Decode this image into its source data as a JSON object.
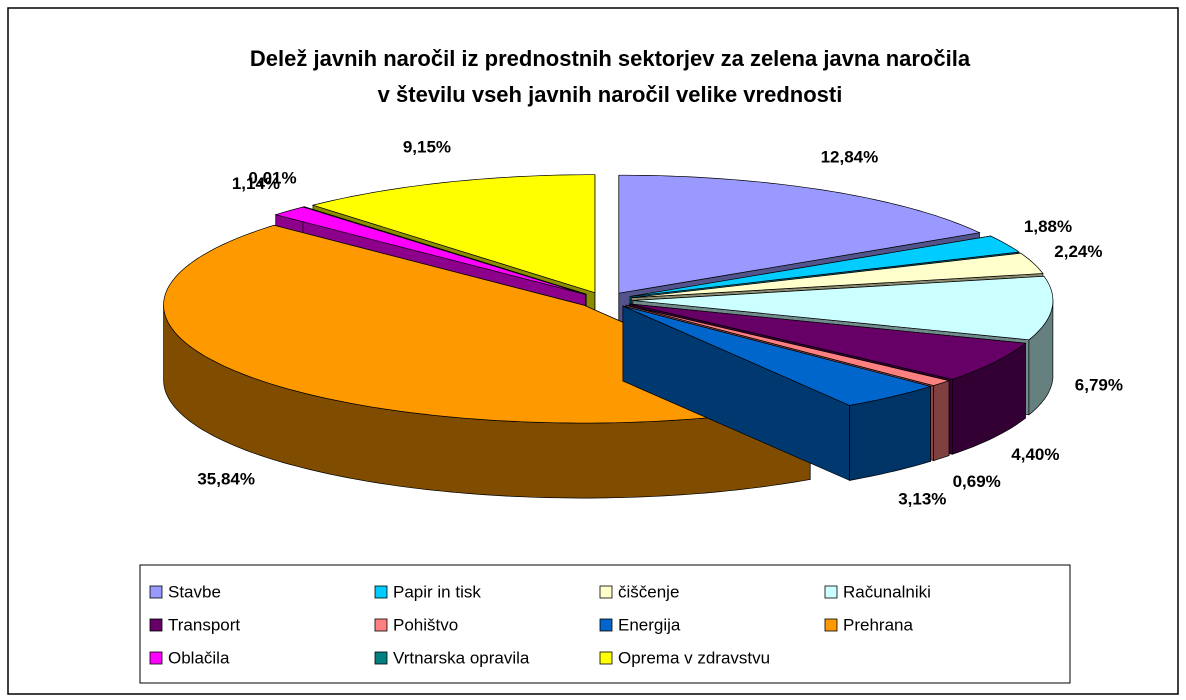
{
  "chart_data": {
    "type": "pie",
    "title": [
      "Delež javnih naročil iz prednostnih sektorjev za zelena javna naročila",
      "v številu vseh javnih naročil velike vrednosti"
    ],
    "categories": [
      "Stavbe",
      "Papir in tisk",
      "čiščenje",
      "Računalniki",
      "Transport",
      "Pohištvo",
      "Energija",
      "Prehrana",
      "Oblačila",
      "Vrtnarska opravila",
      "Oprema v zdravstvu"
    ],
    "values": [
      12.84,
      1.88,
      2.24,
      6.79,
      4.4,
      0.69,
      3.13,
      35.84,
      1.14,
      0.01,
      9.15
    ],
    "value_labels": [
      "12,84%",
      "1,88%",
      "2,24%",
      "6,79%",
      "4,40%",
      "0,69%",
      "3,13%",
      "35,84%",
      "1,14%",
      "0,01%",
      "9,15%"
    ],
    "colors": [
      "#9999ff",
      "#00ccff",
      "#ffffcc",
      "#ccffff",
      "#660066",
      "#ff8080",
      "#0066cc",
      "#ff9900",
      "#ff00ff",
      "#008080",
      "#ffff00"
    ],
    "legend": "bottom"
  }
}
